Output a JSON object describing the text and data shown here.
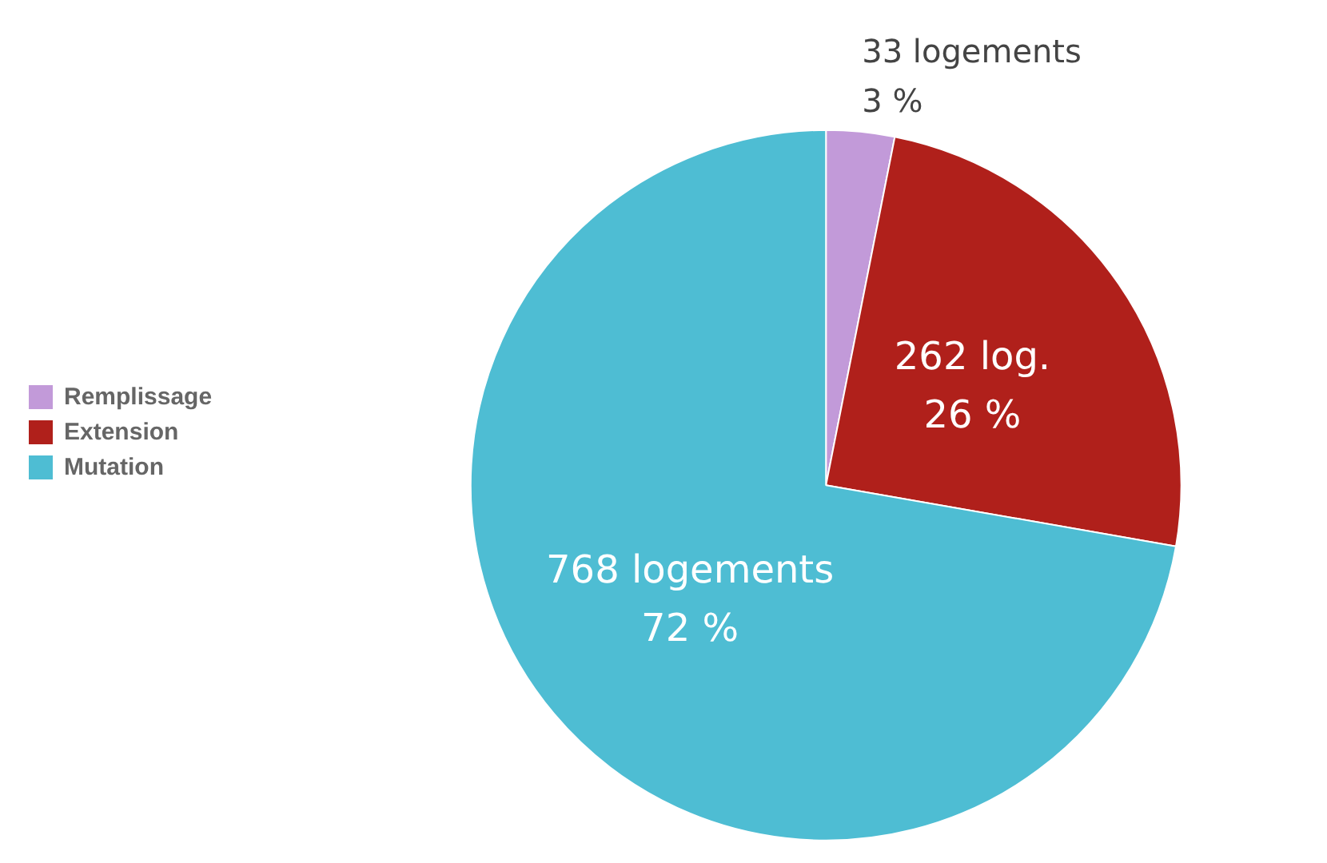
{
  "chart_data": {
    "type": "pie",
    "categories": [
      "Remplissage",
      "Extension",
      "Mutation"
    ],
    "values": [
      33,
      262,
      768
    ],
    "colors": [
      "#c29ad9",
      "#b0201b",
      "#4ebdd3"
    ],
    "value_labels": [
      "33 logements\n3 %",
      "262 log.\n26 %",
      "768 logements\n72 %"
    ],
    "legend": "left"
  }
}
